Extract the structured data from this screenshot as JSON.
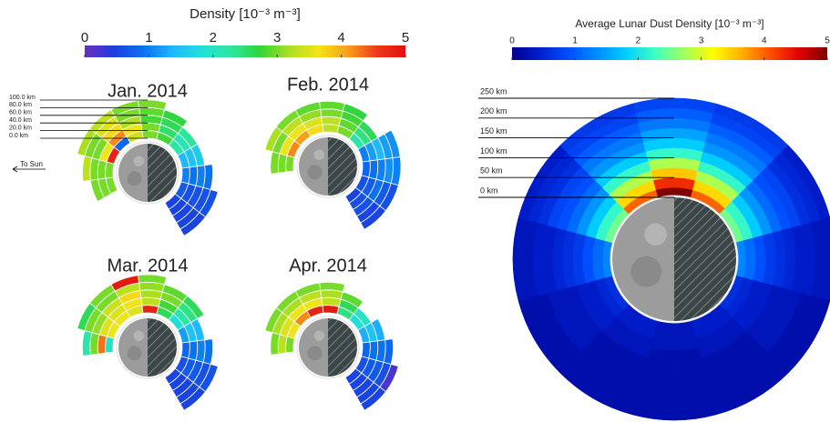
{
  "chart_data": [
    {
      "type": "polar-heatmap",
      "colorbar": {
        "title": "Density [10⁻³ m⁻³]",
        "lim": [
          0,
          5
        ],
        "ticks": [
          0,
          1,
          2,
          3,
          4,
          5
        ],
        "colors": [
          "#6b2fbf",
          "#1c3fe0",
          "#0a73f0",
          "#1fb6ff",
          "#22e0d8",
          "#2ee6a0",
          "#31d43a",
          "#a8e020",
          "#f5e31a",
          "#f7a21a",
          "#ef3b1a",
          "#e01010"
        ]
      },
      "rlim": [
        0,
        100
      ],
      "rticks": [
        {
          "value": 100,
          "label": "100.0 km"
        },
        {
          "value": 80,
          "label": "80.0 km"
        },
        {
          "value": 60,
          "label": "60.0 km"
        },
        {
          "value": 40,
          "label": "40.0 km"
        },
        {
          "value": 20,
          "label": "20.0 km"
        },
        {
          "value": 0,
          "label": "0.0 km"
        }
      ],
      "sun_label": "To Sun",
      "panels": [
        {
          "title": "Jan. 2014",
          "sectors": [
            [
              3,
              3,
              3,
              null,
              null
            ],
            [
              3,
              3,
              3,
              3.3,
              null
            ],
            [
              4.8,
              3.6,
              3,
              3,
              3.2
            ],
            [
              0.8,
              4.2,
              3.7,
              3.5,
              3.3
            ],
            [
              3.4,
              3.6,
              3.2,
              3,
              3
            ],
            [
              3,
              3,
              2.8,
              2.9,
              3
            ],
            [
              2.8,
              2.5,
              2.6,
              2.7,
              null
            ],
            [
              2.2,
              2.1,
              2.3,
              null,
              null
            ],
            [
              1.4,
              1.5,
              1.6,
              null,
              null
            ],
            [
              1,
              0.9,
              1,
              0.9,
              null
            ],
            [
              0.7,
              0.6,
              0.6,
              0.6,
              0.6
            ],
            [
              0.5,
              0.5,
              0.5,
              0.5,
              0.5
            ]
          ]
        },
        {
          "title": "Feb. 2014",
          "sectors": [
            [
              null,
              null,
              null,
              null,
              null
            ],
            [
              3,
              3,
              3,
              null,
              null
            ],
            [
              4.2,
              3.6,
              3,
              3.2,
              null
            ],
            [
              4.1,
              3.6,
              3.3,
              3,
              null
            ],
            [
              3.7,
              3.5,
              3.1,
              2.9,
              null
            ],
            [
              3.3,
              3.3,
              3,
              2.9,
              null
            ],
            [
              3,
              2.9,
              2.8,
              2.7,
              null
            ],
            [
              2.2,
              2.4,
              2.6,
              null,
              null
            ],
            [
              1,
              1.2,
              1.4,
              1.2,
              1.1
            ],
            [
              0.8,
              0.9,
              1,
              1.1,
              1
            ],
            [
              0.6,
              0.7,
              0.9,
              0.7,
              0.6
            ],
            [
              0.5,
              0.6,
              0.6,
              0.5,
              0.5
            ]
          ]
        },
        {
          "title": "Mar. 2014",
          "sectors": [
            [
              null,
              null,
              null,
              null,
              null
            ],
            [
              2,
              4.3,
              3,
              2.2,
              null
            ],
            [
              3.6,
              3.5,
              3.1,
              3,
              2.6
            ],
            [
              3.6,
              3.5,
              3.4,
              3,
              3
            ],
            [
              3.5,
              3.6,
              3.7,
              3.3,
              4.9
            ],
            [
              4.8,
              3.3,
              3.2,
              3.1,
              3
            ],
            [
              2.6,
              2.8,
              3,
              2.9,
              null
            ],
            [
              1.8,
              2.2,
              2.4,
              2.6,
              null
            ],
            [
              1.2,
              1.5,
              1.4,
              null,
              null
            ],
            [
              0.8,
              0.9,
              1,
              0.9,
              null
            ],
            [
              0.6,
              0.7,
              0.7,
              0.6,
              0.6
            ],
            [
              0.5,
              0.5,
              0.5,
              0.5,
              0.5
            ]
          ]
        },
        {
          "title": "Apr. 2014",
          "sectors": [
            [
              null,
              null,
              null,
              null,
              null
            ],
            [
              3,
              3.3,
              3,
              null,
              null
            ],
            [
              3.6,
              3.5,
              3.2,
              3,
              null
            ],
            [
              4.2,
              3.6,
              3.2,
              3,
              null
            ],
            [
              4.8,
              3.6,
              3.3,
              3,
              null
            ],
            [
              4.9,
              3.3,
              3.2,
              3,
              null
            ],
            [
              2.4,
              2.6,
              2.9,
              null,
              null
            ],
            [
              1.8,
              2,
              null,
              null,
              null
            ],
            [
              1.3,
              1.5,
              1.3,
              null,
              null
            ],
            [
              0.8,
              0.9,
              0.9,
              0.8,
              null
            ],
            [
              0.6,
              0.7,
              0.7,
              0.6,
              0.2
            ],
            [
              0.5,
              0.5,
              0.5,
              0.5,
              0.5
            ]
          ]
        }
      ]
    },
    {
      "type": "polar-heatmap-full",
      "colorbar": {
        "title": "Average Lunar Dust Density [10⁻³ m⁻³]",
        "lim": [
          0,
          5
        ],
        "ticks": [
          0,
          1,
          2,
          3,
          4,
          5
        ],
        "colors": [
          "#00008f",
          "#0020d0",
          "#0050ff",
          "#0090ff",
          "#00d0ff",
          "#40ffc0",
          "#a0ff60",
          "#ffff00",
          "#ffb000",
          "#ff5000",
          "#e00000",
          "#800000"
        ]
      },
      "rlim": [
        0,
        250
      ],
      "rticks": [
        {
          "value": 250,
          "label": "250 km"
        },
        {
          "value": 200,
          "label": "200 km"
        },
        {
          "value": 150,
          "label": "150 km"
        },
        {
          "value": 100,
          "label": "100 km"
        },
        {
          "value": 50,
          "label": "50 km"
        },
        {
          "value": 0,
          "label": "0 km"
        }
      ],
      "rings": [
        [
          5,
          4,
          2.5,
          1.3,
          0.6,
          0.4,
          0.3,
          0.4,
          0.6,
          1.3,
          2.5,
          4
        ],
        [
          4.3,
          3.4,
          2.2,
          1.1,
          0.5,
          0.4,
          0.3,
          0.4,
          0.5,
          1.1,
          2.2,
          3.4
        ],
        [
          3.5,
          2.8,
          1.8,
          0.9,
          0.4,
          0.3,
          0.3,
          0.3,
          0.4,
          0.9,
          1.8,
          2.8
        ],
        [
          2.8,
          2.2,
          1.4,
          0.7,
          0.4,
          0.3,
          0.2,
          0.3,
          0.4,
          0.7,
          1.4,
          2.2
        ],
        [
          2.2,
          1.8,
          1.1,
          0.6,
          0.3,
          0.2,
          0.2,
          0.2,
          0.3,
          0.6,
          1.1,
          1.8
        ],
        [
          1.8,
          1.4,
          0.9,
          0.5,
          0.3,
          0.2,
          0.2,
          0.2,
          0.3,
          0.5,
          0.9,
          1.4
        ],
        [
          1.5,
          1.2,
          0.8,
          0.4,
          0.3,
          0.2,
          0.2,
          0.2,
          0.3,
          0.4,
          0.8,
          1.2
        ],
        [
          1.2,
          1,
          0.6,
          0.4,
          0.2,
          0.2,
          0.2,
          0.2,
          0.2,
          0.4,
          0.6,
          1
        ],
        [
          1,
          0.8,
          0.5,
          0.3,
          0.2,
          0.2,
          0.2,
          0.2,
          0.2,
          0.3,
          0.5,
          0.8
        ],
        [
          0.8,
          0.7,
          0.4,
          0.3,
          0.2,
          0.2,
          0.2,
          0.2,
          0.2,
          0.3,
          0.4,
          0.7
        ]
      ]
    }
  ]
}
